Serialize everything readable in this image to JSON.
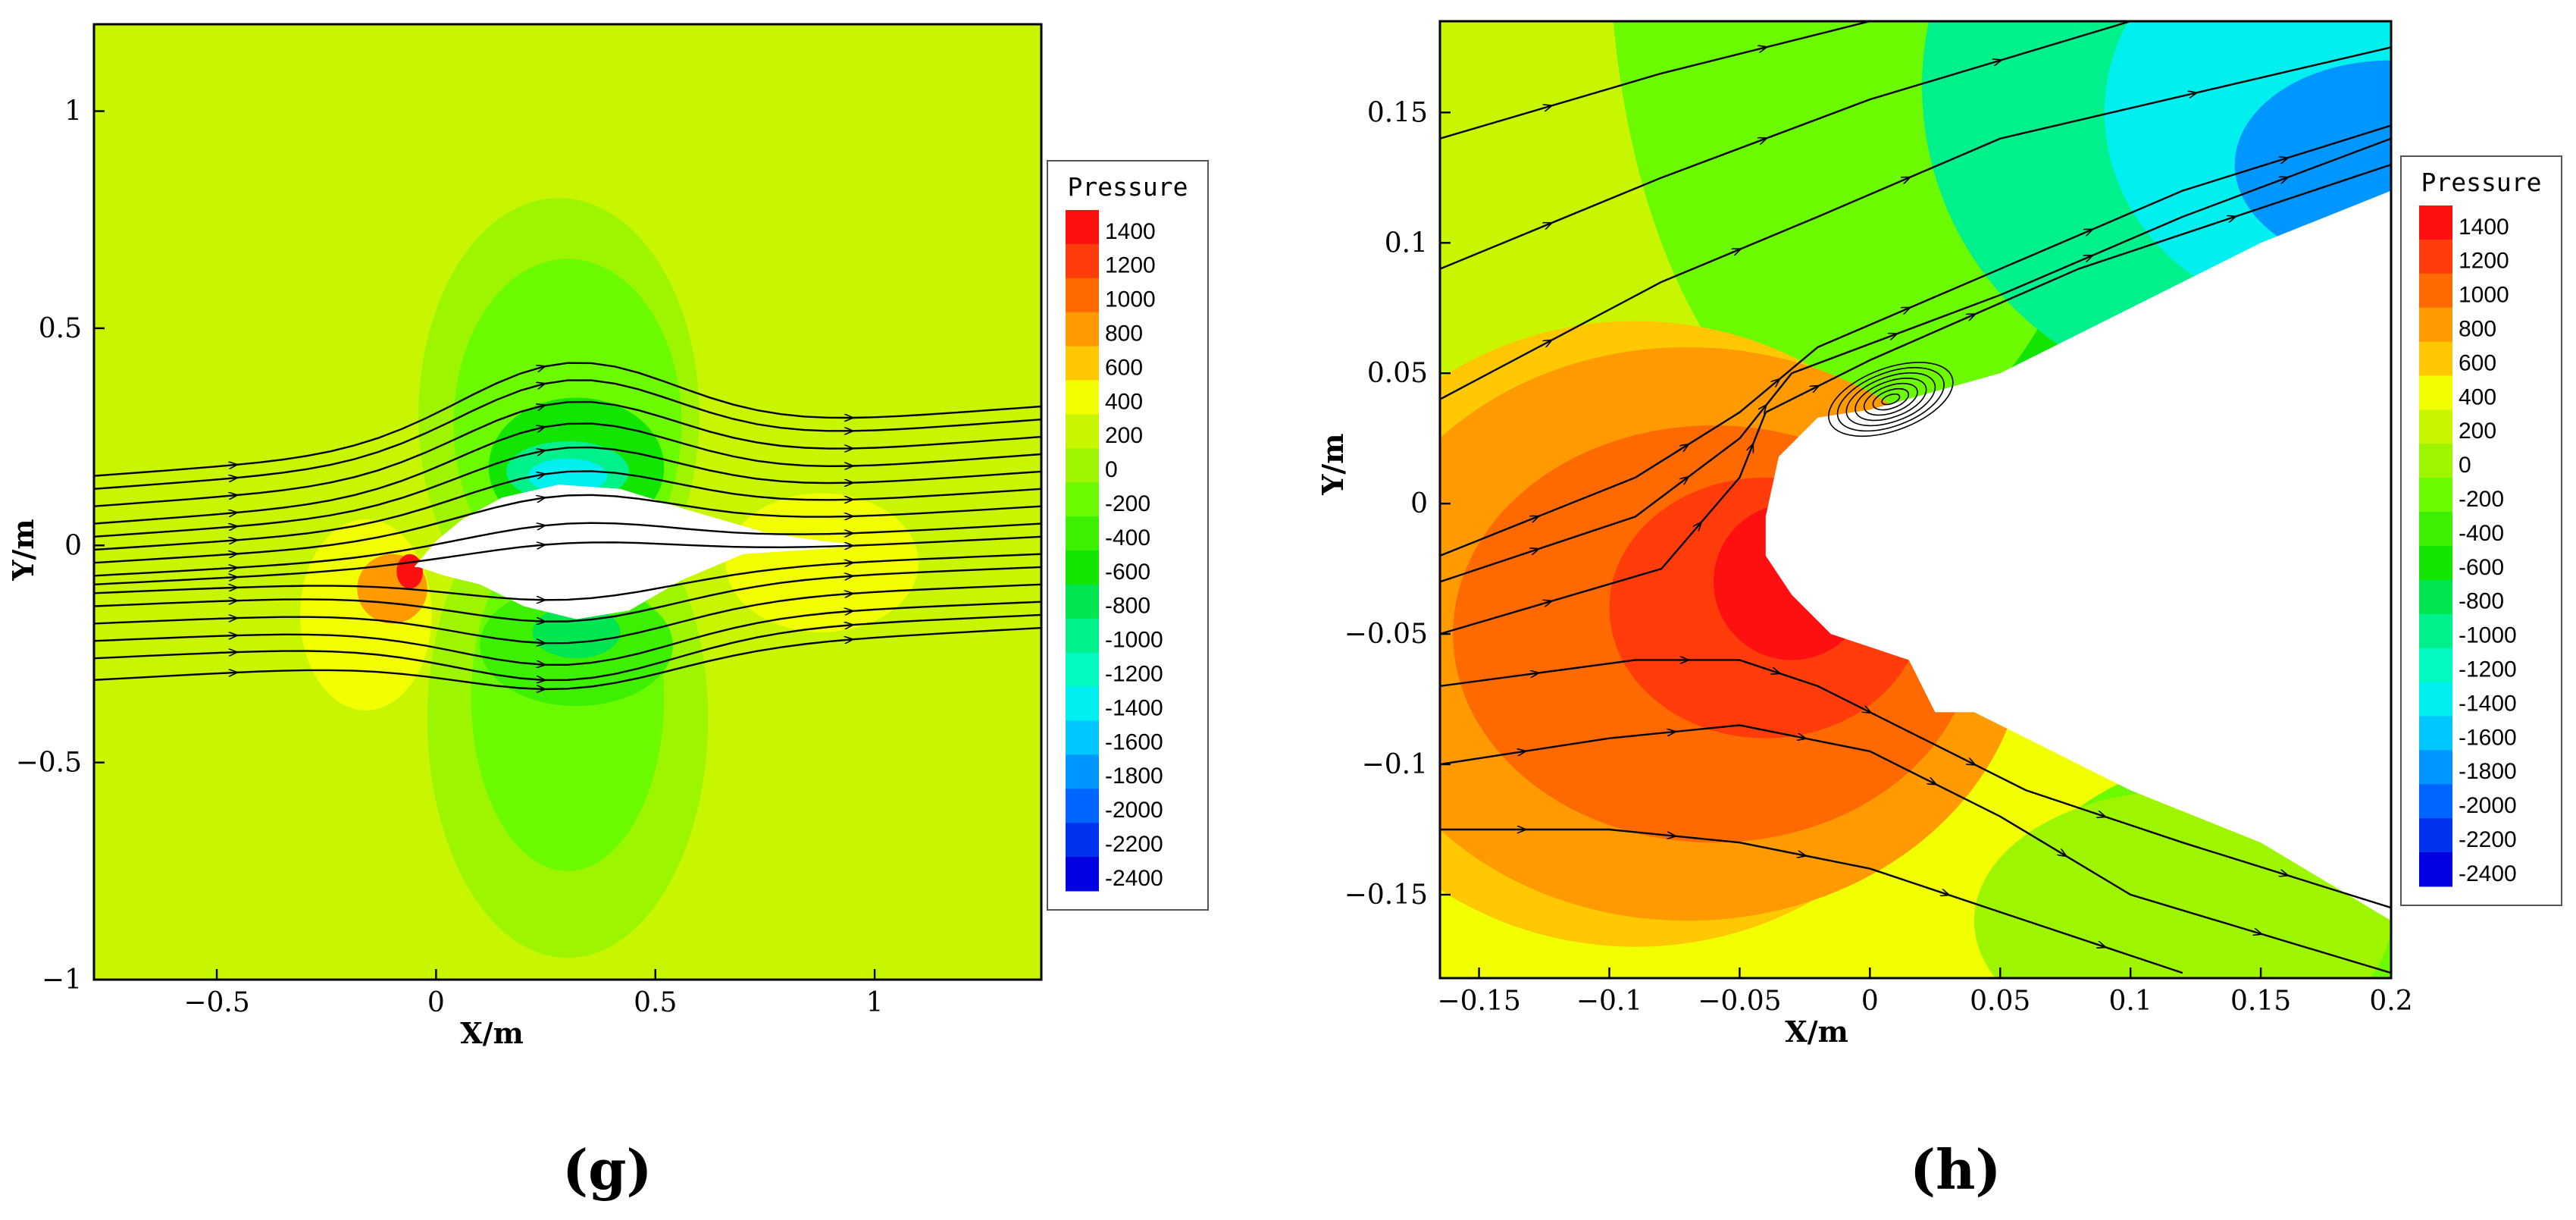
{
  "figure": {
    "caption_g": "(g)",
    "caption_h": "(h)"
  },
  "colormap": [
    {
      "level": 1400,
      "color": "#ff1010"
    },
    {
      "level": 1200,
      "color": "#ff3c0a"
    },
    {
      "level": 1000,
      "color": "#ff6a00"
    },
    {
      "level": 800,
      "color": "#ff9a00"
    },
    {
      "level": 600,
      "color": "#ffc800"
    },
    {
      "level": 400,
      "color": "#f2ff00"
    },
    {
      "level": 200,
      "color": "#c8f500"
    },
    {
      "level": 0,
      "color": "#9ef500"
    },
    {
      "level": -200,
      "color": "#6cfa00"
    },
    {
      "level": -400,
      "color": "#3cf000"
    },
    {
      "level": -600,
      "color": "#12e600"
    },
    {
      "level": -800,
      "color": "#00e650"
    },
    {
      "level": -1000,
      "color": "#00f08c"
    },
    {
      "level": -1200,
      "color": "#00fac0"
    },
    {
      "level": -1400,
      "color": "#00f0f0"
    },
    {
      "level": -1600,
      "color": "#00c8ff"
    },
    {
      "level": -1800,
      "color": "#0096ff"
    },
    {
      "level": -2000,
      "color": "#0064ff"
    },
    {
      "level": -2200,
      "color": "#0032f0"
    },
    {
      "level": -2400,
      "color": "#0000e0"
    }
  ],
  "chart_data": [
    {
      "type": "heatmap",
      "panel": "g",
      "title": "",
      "xlabel": "X/m",
      "ylabel": "Y/m",
      "xlim": [
        -0.78,
        1.38
      ],
      "ylim": [
        -1.0,
        1.2
      ],
      "x_ticks": [
        -0.5,
        0,
        0.5,
        1
      ],
      "y_ticks": [
        -1,
        -0.5,
        0,
        0.5,
        1
      ],
      "x_tick_labels": [
        "−0.5",
        "0",
        "0.5",
        "1"
      ],
      "y_tick_labels": [
        "−1",
        "−0.5",
        "0",
        "0.5",
        "1"
      ],
      "legend_title": "Pressure",
      "legend_labels": [
        "1400",
        "1200",
        "1000",
        "800",
        "600",
        "400",
        "200",
        "0",
        "-200",
        "-400",
        "-600",
        "-800",
        "-1000",
        "-1200",
        "-1400",
        "-1600",
        "-1800",
        "-2000",
        "-2200",
        "-2400"
      ],
      "background_level": 200,
      "pressure_regions": [
        {
          "cx": 0.28,
          "cy": 0.3,
          "rx": 0.32,
          "ry": 0.5,
          "level": 0
        },
        {
          "cx": 0.3,
          "cy": 0.28,
          "rx": 0.26,
          "ry": 0.38,
          "level": -200
        },
        {
          "cx": 0.3,
          "cy": -0.4,
          "rx": 0.32,
          "ry": 0.55,
          "level": 0
        },
        {
          "cx": 0.3,
          "cy": -0.35,
          "rx": 0.22,
          "ry": 0.4,
          "level": -200
        },
        {
          "cx": 0.32,
          "cy": 0.18,
          "rx": 0.2,
          "ry": 0.16,
          "level": -600
        },
        {
          "cx": 0.3,
          "cy": 0.17,
          "rx": 0.14,
          "ry": 0.07,
          "level": -1000
        },
        {
          "cx": 0.3,
          "cy": 0.16,
          "rx": 0.09,
          "ry": 0.04,
          "level": -1400
        },
        {
          "cx": 0.32,
          "cy": -0.23,
          "rx": 0.22,
          "ry": 0.14,
          "level": -400
        },
        {
          "cx": 0.32,
          "cy": -0.2,
          "rx": 0.1,
          "ry": 0.06,
          "level": -800
        },
        {
          "cx": -0.16,
          "cy": -0.16,
          "rx": 0.15,
          "ry": 0.22,
          "level": 400
        },
        {
          "cx": -0.1,
          "cy": -0.1,
          "rx": 0.08,
          "ry": 0.08,
          "level": 800
        },
        {
          "cx": -0.06,
          "cy": -0.06,
          "rx": 0.03,
          "ry": 0.04,
          "level": 1400
        },
        {
          "cx": 0.88,
          "cy": -0.04,
          "rx": 0.22,
          "ry": 0.16,
          "level": 400
        }
      ],
      "body_outline": [
        [
          -0.05,
          -0.05
        ],
        [
          0.0,
          0.01
        ],
        [
          0.06,
          0.06
        ],
        [
          0.15,
          0.11
        ],
        [
          0.28,
          0.14
        ],
        [
          0.42,
          0.13
        ],
        [
          0.58,
          0.08
        ],
        [
          0.75,
          0.03
        ],
        [
          0.88,
          0.01
        ],
        [
          0.98,
          0.0
        ],
        [
          0.85,
          -0.01
        ],
        [
          0.7,
          -0.02
        ],
        [
          0.56,
          -0.08
        ],
        [
          0.44,
          -0.15
        ],
        [
          0.32,
          -0.17
        ],
        [
          0.2,
          -0.14
        ],
        [
          0.1,
          -0.09
        ],
        [
          0.02,
          -0.07
        ],
        [
          -0.04,
          -0.05
        ]
      ],
      "streamlines": [
        {
          "y0": 0.16,
          "y1": 0.32,
          "bulge": 0.18
        },
        {
          "y0": 0.13,
          "y1": 0.29,
          "bulge": 0.17
        },
        {
          "y0": 0.09,
          "y1": 0.25,
          "bulge": 0.16
        },
        {
          "y0": 0.05,
          "y1": 0.21,
          "bulge": 0.15
        },
        {
          "y0": 0.02,
          "y1": 0.17,
          "bulge": 0.13
        },
        {
          "y0": -0.01,
          "y1": 0.13,
          "bulge": 0.11
        },
        {
          "y0": -0.04,
          "y1": 0.09,
          "bulge": 0.09
        },
        {
          "y0": -0.07,
          "y1": 0.05,
          "bulge": 0.06
        },
        {
          "y0": -0.09,
          "y1": 0.02,
          "bulge": 0.04
        },
        {
          "y0": -0.11,
          "y1": -0.02,
          "bulge": -0.06
        },
        {
          "y0": -0.14,
          "y1": -0.05,
          "bulge": -0.08
        },
        {
          "y0": -0.18,
          "y1": -0.09,
          "bulge": -0.09
        },
        {
          "y0": -0.22,
          "y1": -0.13,
          "bulge": -0.1
        },
        {
          "y0": -0.26,
          "y1": -0.16,
          "bulge": -0.1
        },
        {
          "y0": -0.31,
          "y1": -0.19,
          "bulge": -0.08
        }
      ]
    },
    {
      "type": "heatmap",
      "panel": "h",
      "title": "",
      "xlabel": "X/m",
      "ylabel": "Y/m",
      "xlim": [
        -0.165,
        0.2
      ],
      "ylim": [
        -0.182,
        0.185
      ],
      "x_ticks": [
        -0.15,
        -0.1,
        -0.05,
        0,
        0.05,
        0.1,
        0.15,
        0.2
      ],
      "y_ticks": [
        -0.15,
        -0.1,
        -0.05,
        0,
        0.05,
        0.1,
        0.15
      ],
      "x_tick_labels": [
        "−0.15",
        "−0.1",
        "−0.05",
        "0",
        "0.05",
        "0.1",
        "0.15",
        "0.2"
      ],
      "y_tick_labels": [
        "−0.15",
        "−0.1",
        "−0.05",
        "0",
        "0.05",
        "0.1",
        "0.15"
      ],
      "legend_title": "Pressure",
      "legend_labels": [
        "1400",
        "1200",
        "1000",
        "800",
        "600",
        "400",
        "200",
        "0",
        "-200",
        "-400",
        "-600",
        "-800",
        "-1000",
        "-1200",
        "-1400",
        "-1600",
        "-1800",
        "-2000",
        "-2200",
        "-2400"
      ],
      "background_level": 400,
      "pressure_regions": [
        {
          "cx": -0.08,
          "cy": 0.2,
          "rx": 0.14,
          "ry": 0.2,
          "level": 200
        },
        {
          "cx": 0.0,
          "cy": 0.22,
          "rx": 0.1,
          "ry": 0.2,
          "level": -200
        },
        {
          "cx": 0.08,
          "cy": 0.2,
          "rx": 0.14,
          "ry": 0.18,
          "level": -600
        },
        {
          "cx": 0.14,
          "cy": 0.16,
          "rx": 0.12,
          "ry": 0.12,
          "level": -1000
        },
        {
          "cx": 0.18,
          "cy": 0.15,
          "rx": 0.09,
          "ry": 0.08,
          "level": -1400
        },
        {
          "cx": 0.2,
          "cy": 0.13,
          "rx": 0.06,
          "ry": 0.04,
          "level": -1800
        },
        {
          "cx": 0.18,
          "cy": -0.15,
          "rx": 0.12,
          "ry": 0.06,
          "level": -200
        },
        {
          "cx": 0.12,
          "cy": -0.16,
          "rx": 0.08,
          "ry": 0.05,
          "level": 0
        },
        {
          "cx": -0.09,
          "cy": -0.05,
          "rx": 0.13,
          "ry": 0.12,
          "level": 600
        },
        {
          "cx": -0.07,
          "cy": -0.05,
          "rx": 0.13,
          "ry": 0.11,
          "level": 800
        },
        {
          "cx": -0.06,
          "cy": -0.05,
          "rx": 0.1,
          "ry": 0.08,
          "level": 1000
        },
        {
          "cx": -0.04,
          "cy": -0.04,
          "rx": 0.06,
          "ry": 0.05,
          "level": 1200
        },
        {
          "cx": -0.03,
          "cy": -0.03,
          "rx": 0.03,
          "ry": 0.03,
          "level": 1400
        }
      ],
      "body_outline": [
        [
          -0.04,
          -0.005
        ],
        [
          -0.035,
          0.018
        ],
        [
          -0.02,
          0.033
        ],
        [
          0.0,
          0.036
        ],
        [
          0.05,
          0.05
        ],
        [
          0.1,
          0.075
        ],
        [
          0.15,
          0.1
        ],
        [
          0.2,
          0.12
        ],
        [
          0.2,
          -0.16
        ],
        [
          0.15,
          -0.13
        ],
        [
          0.1,
          -0.11
        ],
        [
          0.07,
          -0.095
        ],
        [
          0.05,
          -0.085
        ],
        [
          0.04,
          -0.08
        ],
        [
          0.025,
          -0.08
        ],
        [
          0.015,
          -0.06
        ],
        [
          0.0,
          -0.055
        ],
        [
          -0.015,
          -0.05
        ],
        [
          -0.03,
          -0.035
        ],
        [
          -0.04,
          -0.02
        ]
      ],
      "vortex": {
        "cx": 0.008,
        "cy": 0.04,
        "rx": 0.025,
        "ry": 0.012
      },
      "streamlines": [
        {
          "pts": [
            [
              -0.165,
              0.14
            ],
            [
              -0.08,
              0.165
            ],
            [
              0.0,
              0.185
            ]
          ]
        },
        {
          "pts": [
            [
              -0.165,
              0.09
            ],
            [
              -0.08,
              0.125
            ],
            [
              0.0,
              0.155
            ],
            [
              0.1,
              0.185
            ]
          ]
        },
        {
          "pts": [
            [
              -0.165,
              0.04
            ],
            [
              -0.08,
              0.085
            ],
            [
              -0.02,
              0.11
            ],
            [
              0.05,
              0.14
            ],
            [
              0.2,
              0.175
            ]
          ]
        },
        {
          "pts": [
            [
              -0.165,
              -0.02
            ],
            [
              -0.09,
              0.01
            ],
            [
              -0.05,
              0.035
            ],
            [
              -0.02,
              0.06
            ],
            [
              0.05,
              0.09
            ],
            [
              0.12,
              0.12
            ],
            [
              0.2,
              0.145
            ]
          ]
        },
        {
          "pts": [
            [
              -0.165,
              -0.03
            ],
            [
              -0.09,
              -0.005
            ],
            [
              -0.05,
              0.025
            ],
            [
              -0.03,
              0.05
            ],
            [
              0.05,
              0.08
            ],
            [
              0.12,
              0.11
            ],
            [
              0.2,
              0.14
            ]
          ]
        },
        {
          "pts": [
            [
              -0.165,
              -0.05
            ],
            [
              -0.08,
              -0.025
            ],
            [
              -0.05,
              0.01
            ],
            [
              -0.04,
              0.035
            ],
            [
              0.0,
              0.055
            ],
            [
              0.08,
              0.09
            ],
            [
              0.2,
              0.13
            ]
          ]
        },
        {
          "pts": [
            [
              -0.165,
              -0.07
            ],
            [
              -0.09,
              -0.06
            ],
            [
              -0.05,
              -0.06
            ],
            [
              -0.02,
              -0.07
            ],
            [
              0.02,
              -0.09
            ],
            [
              0.06,
              -0.11
            ],
            [
              0.12,
              -0.13
            ],
            [
              0.2,
              -0.155
            ]
          ]
        },
        {
          "pts": [
            [
              -0.165,
              -0.1
            ],
            [
              -0.1,
              -0.09
            ],
            [
              -0.05,
              -0.085
            ],
            [
              0.0,
              -0.095
            ],
            [
              0.05,
              -0.12
            ],
            [
              0.1,
              -0.15
            ],
            [
              0.2,
              -0.18
            ]
          ]
        },
        {
          "pts": [
            [
              -0.165,
              -0.125
            ],
            [
              -0.1,
              -0.125
            ],
            [
              -0.05,
              -0.13
            ],
            [
              0.0,
              -0.14
            ],
            [
              0.06,
              -0.16
            ],
            [
              0.12,
              -0.18
            ]
          ]
        }
      ]
    }
  ]
}
